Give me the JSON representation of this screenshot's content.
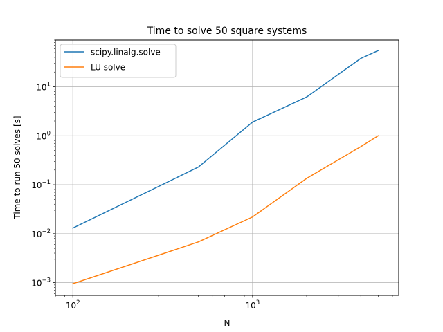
{
  "chart_data": {
    "type": "line",
    "title": "Time to solve 50 square systems",
    "xlabel": "N",
    "ylabel": "Time to run 50 solves [s]",
    "x_scale": "log",
    "y_scale": "log",
    "xlim": [
      80,
      6500
    ],
    "ylim": [
      0.00055,
      90
    ],
    "grid": true,
    "grid_ticks": "major",
    "legend_position": "top-left",
    "x_ticks": [
      {
        "value": 100,
        "base": "10",
        "exp": "2"
      },
      {
        "value": 1000,
        "base": "10",
        "exp": "3"
      }
    ],
    "y_ticks": [
      {
        "value": 0.001,
        "base": "10",
        "exp": "−3"
      },
      {
        "value": 0.01,
        "base": "10",
        "exp": "−2"
      },
      {
        "value": 0.1,
        "base": "10",
        "exp": "−1"
      },
      {
        "value": 1,
        "base": "10",
        "exp": "0"
      },
      {
        "value": 10,
        "base": "10",
        "exp": "1"
      }
    ],
    "x": [
      100,
      500,
      1000,
      2000,
      4000,
      5000
    ],
    "series": [
      {
        "name": "scipy.linalg.solve",
        "color": "#1f77b4",
        "values": [
          0.013,
          0.23,
          1.9,
          6.2,
          38,
          55
        ]
      },
      {
        "name": "LU solve",
        "color": "#ff7f0e",
        "values": [
          0.00095,
          0.0068,
          0.022,
          0.135,
          0.6,
          1.0
        ]
      }
    ]
  }
}
